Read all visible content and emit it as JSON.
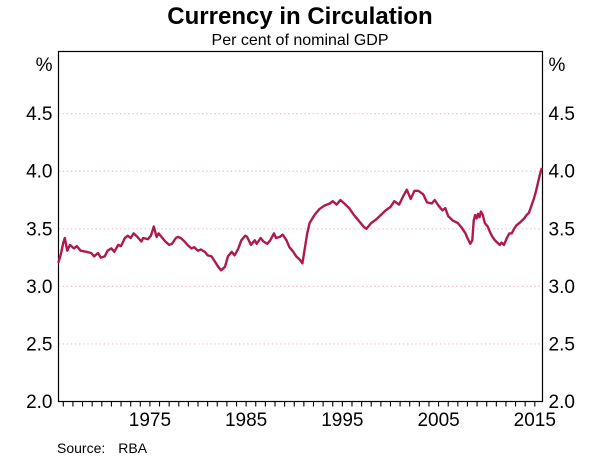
{
  "header": {
    "title": "Currency in Circulation",
    "subtitle": "Per cent of nominal GDP"
  },
  "footer": {
    "source_label": "Source:",
    "source_value": "RBA"
  },
  "colors": {
    "line": "#b01950",
    "grid_pink": "#efc0d1",
    "axis": "#000000"
  },
  "chart_data": {
    "type": "line",
    "title": "Currency in Circulation",
    "subtitle": "Per cent of nominal GDP",
    "unit_label": "%",
    "source": "RBA",
    "legend": "none",
    "grid": "horizontal dotted",
    "x_range": [
      1965.5,
      2015.8
    ],
    "ylim": [
      2.0,
      5.04
    ],
    "yticks": [
      2.0,
      2.5,
      3.0,
      3.5,
      4.0,
      4.5
    ],
    "ytick_labels": [
      "2.0",
      "2.5",
      "3.0",
      "3.5",
      "4.0",
      "4.5"
    ],
    "xtick_years": [
      1975,
      1985,
      1995,
      2005,
      2015
    ],
    "xtick_labels": [
      "1975",
      "1985",
      "1995",
      "2005",
      "2015"
    ],
    "minor_ticks": {
      "start": 1966,
      "end": 2015,
      "step": 1
    },
    "series": [
      {
        "name": "Currency in circulation (per cent of nominal GDP)",
        "color": "#b01950",
        "points": [
          [
            1965.5,
            3.21
          ],
          [
            1965.75,
            3.28
          ],
          [
            1966.0,
            3.38
          ],
          [
            1966.15,
            3.42
          ],
          [
            1966.4,
            3.31
          ],
          [
            1966.7,
            3.36
          ],
          [
            1967.1,
            3.33
          ],
          [
            1967.4,
            3.35
          ],
          [
            1967.8,
            3.31
          ],
          [
            1968.4,
            3.3
          ],
          [
            1968.9,
            3.29
          ],
          [
            1969.2,
            3.26
          ],
          [
            1969.6,
            3.29
          ],
          [
            1969.9,
            3.25
          ],
          [
            1970.3,
            3.26
          ],
          [
            1970.6,
            3.31
          ],
          [
            1971.0,
            3.33
          ],
          [
            1971.3,
            3.3
          ],
          [
            1971.7,
            3.36
          ],
          [
            1972.0,
            3.35
          ],
          [
            1972.4,
            3.42
          ],
          [
            1972.7,
            3.44
          ],
          [
            1973.0,
            3.42
          ],
          [
            1973.3,
            3.46
          ],
          [
            1973.7,
            3.43
          ],
          [
            1974.1,
            3.39
          ],
          [
            1974.3,
            3.42
          ],
          [
            1974.8,
            3.41
          ],
          [
            1975.1,
            3.44
          ],
          [
            1975.4,
            3.52
          ],
          [
            1975.7,
            3.43
          ],
          [
            1975.9,
            3.46
          ],
          [
            1976.3,
            3.42
          ],
          [
            1976.6,
            3.39
          ],
          [
            1977.0,
            3.36
          ],
          [
            1977.3,
            3.37
          ],
          [
            1977.7,
            3.42
          ],
          [
            1977.9,
            3.43
          ],
          [
            1978.2,
            3.42
          ],
          [
            1978.6,
            3.39
          ],
          [
            1978.9,
            3.36
          ],
          [
            1979.3,
            3.33
          ],
          [
            1979.6,
            3.34
          ],
          [
            1980.0,
            3.31
          ],
          [
            1980.3,
            3.32
          ],
          [
            1980.7,
            3.3
          ],
          [
            1981.0,
            3.27
          ],
          [
            1981.4,
            3.26
          ],
          [
            1981.8,
            3.21
          ],
          [
            1982.1,
            3.17
          ],
          [
            1982.4,
            3.14
          ],
          [
            1982.8,
            3.17
          ],
          [
            1983.1,
            3.26
          ],
          [
            1983.5,
            3.3
          ],
          [
            1983.8,
            3.27
          ],
          [
            1984.2,
            3.33
          ],
          [
            1984.5,
            3.4
          ],
          [
            1984.9,
            3.44
          ],
          [
            1985.1,
            3.43
          ],
          [
            1985.5,
            3.36
          ],
          [
            1985.9,
            3.4
          ],
          [
            1986.1,
            3.37
          ],
          [
            1986.5,
            3.42
          ],
          [
            1986.8,
            3.39
          ],
          [
            1987.2,
            3.37
          ],
          [
            1987.5,
            3.4
          ],
          [
            1987.9,
            3.46
          ],
          [
            1988.1,
            3.42
          ],
          [
            1988.5,
            3.43
          ],
          [
            1988.8,
            3.45
          ],
          [
            1989.2,
            3.4
          ],
          [
            1989.5,
            3.34
          ],
          [
            1989.9,
            3.3
          ],
          [
            1990.2,
            3.26
          ],
          [
            1990.6,
            3.23
          ],
          [
            1990.85,
            3.2
          ],
          [
            1991.1,
            3.33
          ],
          [
            1991.35,
            3.46
          ],
          [
            1991.6,
            3.55
          ],
          [
            1992.1,
            3.62
          ],
          [
            1992.6,
            3.67
          ],
          [
            1993.1,
            3.7
          ],
          [
            1993.7,
            3.72
          ],
          [
            1994.0,
            3.74
          ],
          [
            1994.4,
            3.71
          ],
          [
            1994.8,
            3.75
          ],
          [
            1995.2,
            3.72
          ],
          [
            1995.7,
            3.68
          ],
          [
            1996.2,
            3.62
          ],
          [
            1996.7,
            3.57
          ],
          [
            1997.2,
            3.52
          ],
          [
            1997.5,
            3.5
          ],
          [
            1998.0,
            3.55
          ],
          [
            1998.5,
            3.58
          ],
          [
            1999.0,
            3.62
          ],
          [
            1999.5,
            3.66
          ],
          [
            2000.0,
            3.69
          ],
          [
            2000.4,
            3.74
          ],
          [
            2000.9,
            3.71
          ],
          [
            2001.3,
            3.78
          ],
          [
            2001.7,
            3.84
          ],
          [
            2002.1,
            3.76
          ],
          [
            2002.5,
            3.83
          ],
          [
            2002.9,
            3.83
          ],
          [
            2003.4,
            3.8
          ],
          [
            2003.8,
            3.73
          ],
          [
            2004.3,
            3.72
          ],
          [
            2004.6,
            3.75
          ],
          [
            2005.0,
            3.7
          ],
          [
            2005.4,
            3.66
          ],
          [
            2005.7,
            3.68
          ],
          [
            2006.0,
            3.61
          ],
          [
            2006.5,
            3.57
          ],
          [
            2007.0,
            3.55
          ],
          [
            2007.4,
            3.51
          ],
          [
            2007.8,
            3.46
          ],
          [
            2008.0,
            3.42
          ],
          [
            2008.3,
            3.37
          ],
          [
            2008.5,
            3.4
          ],
          [
            2008.65,
            3.57
          ],
          [
            2008.8,
            3.62
          ],
          [
            2008.95,
            3.59
          ],
          [
            2009.1,
            3.63
          ],
          [
            2009.25,
            3.6
          ],
          [
            2009.4,
            3.65
          ],
          [
            2009.6,
            3.62
          ],
          [
            2009.8,
            3.55
          ],
          [
            2010.1,
            3.52
          ],
          [
            2010.35,
            3.47
          ],
          [
            2010.6,
            3.43
          ],
          [
            2010.85,
            3.4
          ],
          [
            2011.1,
            3.38
          ],
          [
            2011.35,
            3.36
          ],
          [
            2011.55,
            3.38
          ],
          [
            2011.8,
            3.36
          ],
          [
            2012.1,
            3.42
          ],
          [
            2012.35,
            3.46
          ],
          [
            2012.6,
            3.46
          ],
          [
            2012.85,
            3.5
          ],
          [
            2013.1,
            3.53
          ],
          [
            2013.4,
            3.55
          ],
          [
            2013.65,
            3.57
          ],
          [
            2013.9,
            3.59
          ],
          [
            2014.15,
            3.62
          ],
          [
            2014.4,
            3.64
          ],
          [
            2014.65,
            3.7
          ],
          [
            2014.9,
            3.76
          ],
          [
            2015.1,
            3.82
          ],
          [
            2015.3,
            3.89
          ],
          [
            2015.5,
            3.96
          ],
          [
            2015.7,
            4.02
          ]
        ]
      }
    ]
  }
}
